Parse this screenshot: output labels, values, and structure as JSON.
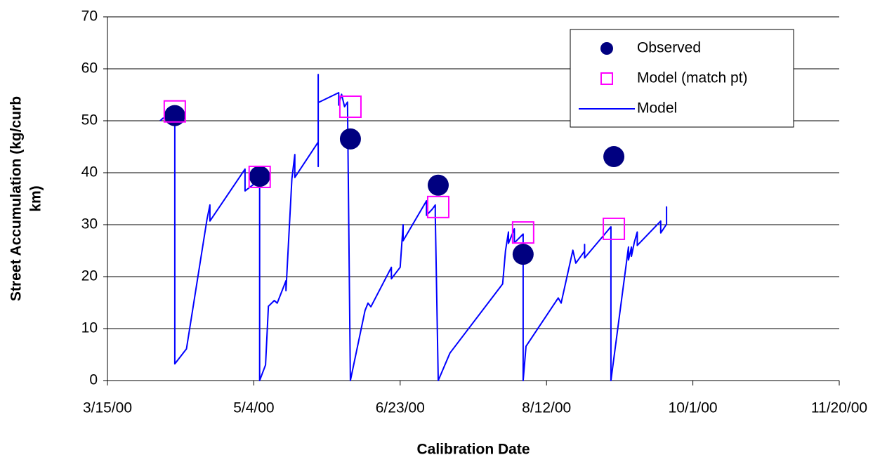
{
  "chart_data": {
    "type": "line",
    "xlabel": "Calibration Date",
    "ylabel": [
      "Street Accumulation (kg/curb",
      "km)"
    ],
    "xlim": [
      "3/15/00",
      "11/20/00"
    ],
    "xticks": [
      "3/15/00",
      "5/4/00",
      "6/23/00",
      "8/12/00",
      "10/1/00",
      "11/20/00"
    ],
    "ylim": [
      0,
      70
    ],
    "yticks": [
      0,
      10,
      20,
      30,
      40,
      50,
      60,
      70
    ],
    "grid": true,
    "legend": "upper right",
    "series": [
      {
        "name": "Observed",
        "type": "scatter",
        "marker": "circle",
        "color": "#000080",
        "x": [
          "4/7/00",
          "5/6/00",
          "6/6/00",
          "7/6/00",
          "8/4/00",
          "9/4/00"
        ],
        "values": [
          51,
          39.3,
          46.5,
          37.6,
          24.3,
          43.1
        ]
      },
      {
        "name": "Model (match pt)",
        "type": "scatter",
        "marker": "square",
        "color": "#FF00FF",
        "x": [
          "4/7/00",
          "5/6/00",
          "6/6/00",
          "7/6/00",
          "8/4/00",
          "9/4/00"
        ],
        "values": [
          51.8,
          39.2,
          52.7,
          33.4,
          28.5,
          29.2
        ]
      },
      {
        "name": "Model",
        "type": "line",
        "color": "#0000FF",
        "x": [
          "4/2/00",
          "4/3/00",
          "4/7/00",
          "4/7/00",
          "4/11/00",
          "4/18/00",
          "4/19/00",
          "4/19/00",
          "5/1/00",
          "5/1/00",
          "5/4/00",
          "5/6/00",
          "5/6/00",
          "5/8/00",
          "5/9/00",
          "5/11/00",
          "5/12/00",
          "5/15/00",
          "5/15/00",
          "5/17/00",
          "5/18/00",
          "5/18/00",
          "5/26/00",
          "5/26/00",
          "5/26/00",
          "5/26/00",
          "6/2/00",
          "6/2/00",
          "6/3/00",
          "6/4/00",
          "6/5/00",
          "6/6/00",
          "6/11/00",
          "6/12/00",
          "6/13/00",
          "6/20/00",
          "6/20/00",
          "6/23/00",
          "6/24/00",
          "6/24/00",
          "7/2/00",
          "7/2/00",
          "7/4/00",
          "7/5/00",
          "7/5/00",
          "7/6/00",
          "7/10/00",
          "7/28/00",
          "7/29/00",
          "7/30/00",
          "7/30/00",
          "8/1/00",
          "8/1/00",
          "8/4/00",
          "8/4/00",
          "8/5/00",
          "8/16/00",
          "8/17/00",
          "8/21/00",
          "8/22/00",
          "8/25/00",
          "8/25/00",
          "8/25/00",
          "9/3/00",
          "9/3/00",
          "9/9/00",
          "9/9/00",
          "9/10/00",
          "9/10/00",
          "9/11/00",
          "9/12/00",
          "9/12/00",
          "9/20/00",
          "9/20/00",
          "9/22/00",
          "9/22/00",
          "9/22/00"
        ],
        "values": [
          50.0,
          50.5,
          50.5,
          3.2,
          6.1,
          31.0,
          33.8,
          30.7,
          40.7,
          36.5,
          37.8,
          39.9,
          0,
          3.0,
          14.3,
          15.4,
          14.9,
          19.2,
          17.3,
          38.8,
          43.5,
          39.1,
          45.9,
          41.2,
          58.9,
          53.5,
          55.4,
          53.0,
          55.1,
          52.7,
          53.6,
          0,
          13.5,
          14.9,
          14.2,
          21.8,
          19.6,
          21.8,
          30.0,
          26.9,
          34.6,
          31.8,
          33.0,
          33.8,
          31.8,
          0,
          5.3,
          18.6,
          25.0,
          28.6,
          26.4,
          29.2,
          26.5,
          28.2,
          0,
          6.6,
          15.9,
          14.9,
          25.1,
          22.6,
          24.9,
          26.2,
          23.6,
          29.6,
          0,
          25.7,
          23.2,
          25.7,
          23.9,
          26.6,
          28.6,
          26.0,
          30.7,
          28.4,
          30.1,
          33.4,
          30.5
        ]
      }
    ]
  }
}
